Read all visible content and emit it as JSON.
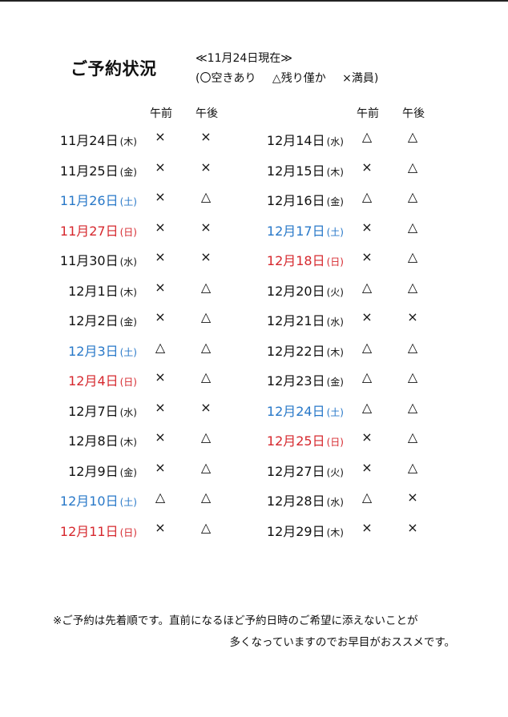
{
  "title": "ご予約状況",
  "as_of": "≪11月24日現在≫",
  "legend": {
    "open_paren": "(",
    "available": "〇空きあり",
    "few_left": "△残り僅か",
    "full": "×満員)"
  },
  "headers": {
    "left_am": "午前",
    "left_pm": "午後",
    "right_am": "午前",
    "right_pm": "午後"
  },
  "colors": {
    "saturday": "#2878c8",
    "sunday": "#d6282e",
    "text": "#111111"
  },
  "left_column": [
    {
      "date": "11月24日",
      "dow": "(木)",
      "type": "weekday",
      "am": "×",
      "pm": "×"
    },
    {
      "date": "11月25日",
      "dow": "(金)",
      "type": "weekday",
      "am": "×",
      "pm": "×"
    },
    {
      "date": "11月26日",
      "dow": "(土)",
      "type": "saturday",
      "am": "×",
      "pm": "△"
    },
    {
      "date": "11月27日",
      "dow": "(日)",
      "type": "sunday",
      "am": "×",
      "pm": "×"
    },
    {
      "date": "11月30日",
      "dow": "(水)",
      "type": "weekday",
      "am": "×",
      "pm": "×"
    },
    {
      "date": "12月1日",
      "dow": "(木)",
      "type": "weekday",
      "am": "×",
      "pm": "△"
    },
    {
      "date": "12月2日",
      "dow": "(金)",
      "type": "weekday",
      "am": "×",
      "pm": "△"
    },
    {
      "date": "12月3日",
      "dow": "(土)",
      "type": "saturday",
      "am": "△",
      "pm": "△"
    },
    {
      "date": "12月4日",
      "dow": "(日)",
      "type": "sunday",
      "am": "×",
      "pm": "△"
    },
    {
      "date": "12月7日",
      "dow": "(水)",
      "type": "weekday",
      "am": "×",
      "pm": "×"
    },
    {
      "date": "12月8日",
      "dow": "(木)",
      "type": "weekday",
      "am": "×",
      "pm": "△"
    },
    {
      "date": "12月9日",
      "dow": "(金)",
      "type": "weekday",
      "am": "×",
      "pm": "△"
    },
    {
      "date": "12月10日",
      "dow": "(土)",
      "type": "saturday",
      "am": "△",
      "pm": "△"
    },
    {
      "date": "12月11日",
      "dow": "(日)",
      "type": "sunday",
      "am": "×",
      "pm": "△"
    }
  ],
  "right_column": [
    {
      "date": "12月14日",
      "dow": "(水)",
      "type": "weekday",
      "am": "△",
      "pm": "△"
    },
    {
      "date": "12月15日",
      "dow": "(木)",
      "type": "weekday",
      "am": "×",
      "pm": "△"
    },
    {
      "date": "12月16日",
      "dow": "(金)",
      "type": "weekday",
      "am": "△",
      "pm": "△"
    },
    {
      "date": "12月17日",
      "dow": "(土)",
      "type": "saturday",
      "am": "×",
      "pm": "△"
    },
    {
      "date": "12月18日",
      "dow": "(日)",
      "type": "sunday",
      "am": "×",
      "pm": "△"
    },
    {
      "date": "12月20日",
      "dow": "(火)",
      "type": "weekday",
      "am": "△",
      "pm": "△"
    },
    {
      "date": "12月21日",
      "dow": "(水)",
      "type": "weekday",
      "am": "×",
      "pm": "×"
    },
    {
      "date": "12月22日",
      "dow": "(木)",
      "type": "weekday",
      "am": "△",
      "pm": "△"
    },
    {
      "date": "12月23日",
      "dow": "(金)",
      "type": "weekday",
      "am": "△",
      "pm": "△"
    },
    {
      "date": "12月24日",
      "dow": "(土)",
      "type": "saturday",
      "am": "△",
      "pm": "△"
    },
    {
      "date": "12月25日",
      "dow": "(日)",
      "type": "sunday",
      "am": "×",
      "pm": "△"
    },
    {
      "date": "12月27日",
      "dow": "(火)",
      "type": "weekday",
      "am": "×",
      "pm": "△"
    },
    {
      "date": "12月28日",
      "dow": "(水)",
      "type": "weekday",
      "am": "△",
      "pm": "×"
    },
    {
      "date": "12月29日",
      "dow": "(木)",
      "type": "weekday",
      "am": "×",
      "pm": "×"
    }
  ],
  "footer": {
    "line1": "※ご予約は先着順です。直前になるほど予約日時のご希望に添えないことが",
    "line2": "多くなっていますのでお早目がおススメです。"
  }
}
